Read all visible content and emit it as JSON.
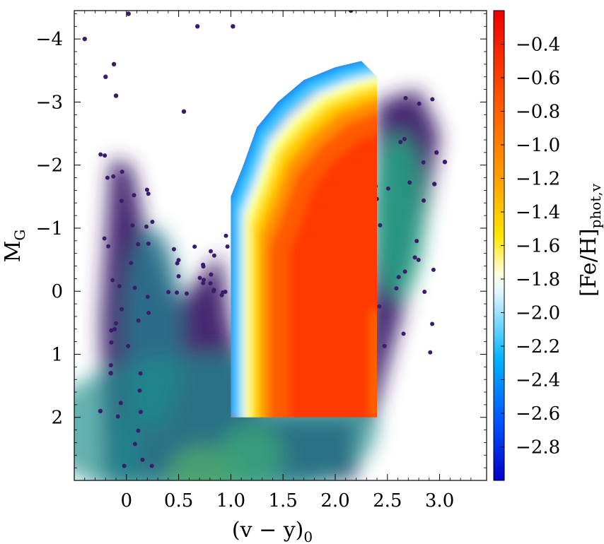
{
  "chart_data": {
    "type": "scatter",
    "title": "",
    "xlabel": "(v − y)",
    "xlabel_sub": "0",
    "ylabel": "M",
    "ylabel_sub": "G",
    "xlim": [
      -0.5,
      3.45
    ],
    "ylim": [
      3.0,
      -4.45
    ],
    "y_inverted": true,
    "grid": false,
    "xticks": [
      {
        "value": 0.0,
        "label": "0"
      },
      {
        "value": 0.5,
        "label": "0.5"
      },
      {
        "value": 1.0,
        "label": "1.0"
      },
      {
        "value": 1.5,
        "label": "1.5"
      },
      {
        "value": 2.0,
        "label": "2.0"
      },
      {
        "value": 2.5,
        "label": "2.5"
      },
      {
        "value": 3.0,
        "label": "3.0"
      }
    ],
    "yticks": [
      {
        "value": -4,
        "label": "−4"
      },
      {
        "value": -3,
        "label": "−3"
      },
      {
        "value": -2,
        "label": "−2"
      },
      {
        "value": -1,
        "label": "−1"
      },
      {
        "value": 0,
        "label": "0"
      },
      {
        "value": 1,
        "label": "1"
      },
      {
        "value": 2,
        "label": "2"
      }
    ],
    "background_density": {
      "colormap": "viridis",
      "regions": [
        {
          "x": 0.25,
          "y": 0.6,
          "spread_x": 0.28,
          "spread_y": 1.6,
          "weight": 0.45
        },
        {
          "x": 0.75,
          "y": 2.9,
          "spread_x": 0.35,
          "spread_y": 0.45,
          "weight": 1.0
        },
        {
          "x": 1.2,
          "y": 2.6,
          "spread_x": 0.3,
          "spread_y": 0.5,
          "weight": 0.8
        },
        {
          "x": 2.6,
          "y": -1.2,
          "spread_x": 0.25,
          "spread_y": 1.3,
          "weight": 0.5
        },
        {
          "x": 0.0,
          "y": 2.5,
          "spread_x": 0.1,
          "spread_y": 0.6,
          "weight": 0.4
        }
      ],
      "outlier_points": [
        {
          "x": -0.4,
          "y": -4.0
        },
        {
          "x": 0.02,
          "y": -4.4
        },
        {
          "x": 0.68,
          "y": -4.2
        },
        {
          "x": 1.02,
          "y": -4.2
        },
        {
          "x": 2.15,
          "y": -4.45
        },
        {
          "x": -0.12,
          "y": -3.6
        },
        {
          "x": -0.2,
          "y": -3.4
        },
        {
          "x": -0.1,
          "y": -3.1
        },
        {
          "x": 0.55,
          "y": -2.85
        },
        {
          "x": 3.05,
          "y": -2.05
        },
        {
          "x": 2.97,
          "y": -2.2
        },
        {
          "x": -0.25,
          "y": 1.9
        },
        {
          "x": -0.15,
          "y": 1.3
        },
        {
          "x": 2.95,
          "y": -1.7
        }
      ]
    },
    "metallicity_overlay": {
      "x_range": [
        1.0,
        2.4
      ],
      "y_range": [
        -3.7,
        2.0
      ],
      "colormap": "jet",
      "colorbar_label": "[Fe/H]",
      "colorbar_label_sub": "phot,v",
      "clim": [
        -3.0,
        -0.2
      ],
      "colorbar_ticks": [
        -0.4,
        -0.6,
        -0.8,
        -1.0,
        -1.2,
        -1.4,
        -1.6,
        -1.8,
        -2.0,
        -2.2,
        -2.4,
        -2.6,
        -2.8
      ],
      "colorbar_tick_labels": [
        "−0.4",
        "−0.6",
        "−0.8",
        "−1.0",
        "−1.2",
        "−1.4",
        "−1.6",
        "−1.8",
        "−2.0",
        "−2.2",
        "−2.4",
        "−2.6",
        "−2.8"
      ],
      "color_zones": [
        {
          "description": "metal-poor edge",
          "feh": -2.3
        },
        {
          "description": "transition",
          "feh": -1.6
        },
        {
          "description": "yellow band",
          "feh": -1.3
        },
        {
          "description": "bulk red",
          "feh": -0.4
        }
      ]
    }
  }
}
